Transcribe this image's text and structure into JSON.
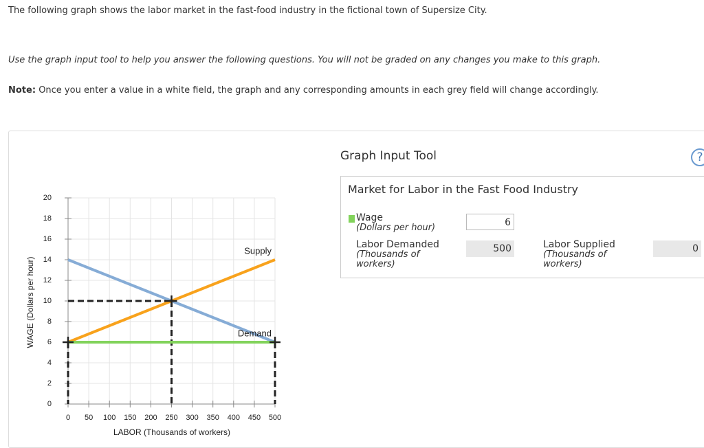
{
  "intro": "The following graph shows the labor market in the fast-food industry in the fictional town of Supersize City.",
  "instruction": "Use the graph input tool to help you answer the following questions. You will not be graded on any changes you make to this graph.",
  "note": {
    "label": "Note:",
    "text": "Once you enter a value in a white field, the graph and any corresponding amounts in each grey field will change accordingly."
  },
  "chart_data": {
    "type": "line",
    "xlabel": "LABOR (Thousands of workers)",
    "ylabel": "WAGE (Dollars per hour)",
    "xlim": [
      0,
      500
    ],
    "ylim": [
      0,
      20
    ],
    "xticks": [
      0,
      50,
      100,
      150,
      200,
      250,
      300,
      350,
      400,
      450,
      500
    ],
    "yticks": [
      0,
      2,
      4,
      6,
      8,
      10,
      12,
      14,
      16,
      18,
      20
    ],
    "grid": true,
    "series": [
      {
        "name": "Demand",
        "color": "#86acd6",
        "x": [
          0,
          500
        ],
        "values": [
          14,
          6
        ]
      },
      {
        "name": "Supply",
        "color": "#f8a21c",
        "x": [
          0,
          500
        ],
        "values": [
          6,
          14
        ]
      },
      {
        "color": "#82d35b",
        "x": [
          0,
          500
        ],
        "values": [
          6,
          6
        ]
      }
    ],
    "guides": {
      "x": [
        0,
        250,
        500
      ],
      "values": [
        6,
        10,
        6
      ]
    }
  },
  "tool": {
    "title": "Graph Input Tool",
    "help": "?",
    "subtitle": "Market for Labor in the Fast Food Industry",
    "wage": {
      "label": "Wage",
      "unit": "(Dollars per hour)",
      "value": 6
    },
    "demanded": {
      "label": "Labor Demanded",
      "unit": "(Thousands of workers)",
      "value": 500
    },
    "supplied": {
      "label": "Labor Supplied",
      "unit": "(Thousands of workers)",
      "value": 0
    }
  }
}
